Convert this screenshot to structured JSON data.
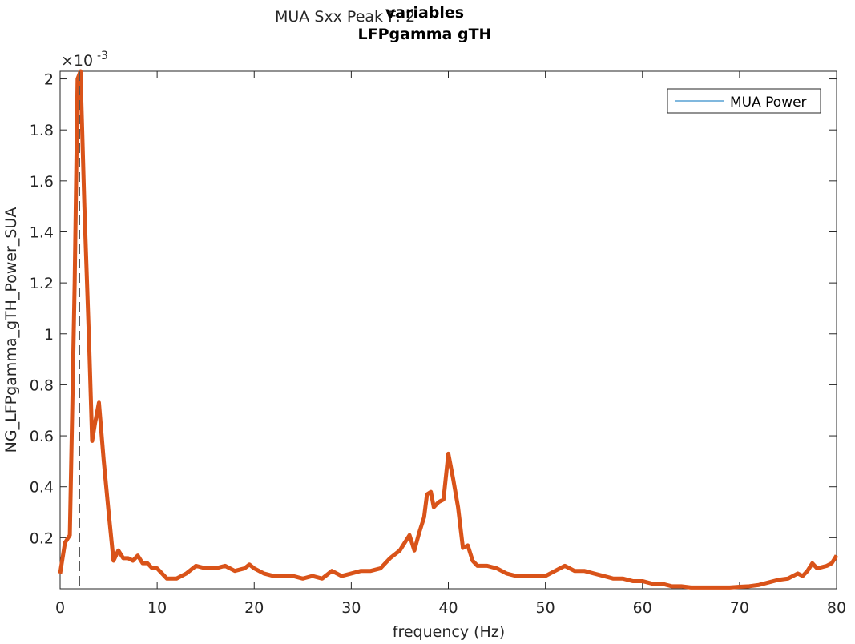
{
  "chart_data": {
    "type": "line",
    "title_lines": [
      "MUA Sxx Peak F: 2",
      "variables",
      "LFPgamma gTH"
    ],
    "xlabel": "frequency (Hz)",
    "ylabel": "NG_LFPgamma_gTH_Power_SUA",
    "y_exponent": {
      "base": "×10",
      "power": "-3"
    },
    "xlim": [
      0,
      80
    ],
    "ylim": [
      0,
      2.03
    ],
    "xticks": [
      0,
      10,
      20,
      30,
      40,
      50,
      60,
      70,
      80
    ],
    "yticks": [
      0.2,
      0.4,
      0.6,
      0.8,
      1,
      1.2,
      1.4,
      1.6,
      1.8,
      2
    ],
    "peak_line_x": 2,
    "legend": "upper right",
    "legend_line_color": "#0072bd",
    "x": [
      0,
      0.5,
      1,
      1.5,
      1.8,
      2.1,
      2.5,
      3,
      3.3,
      3.6,
      4,
      4.5,
      5,
      5.5,
      6,
      6.5,
      7,
      7.5,
      8,
      8.5,
      9,
      9.5,
      10,
      10.5,
      11,
      12,
      13,
      14,
      15,
      16,
      17,
      18,
      19,
      19.5,
      20,
      21,
      22,
      23,
      24,
      25,
      26,
      27,
      28,
      29,
      30,
      31,
      32,
      33,
      34,
      35,
      36,
      36.5,
      37,
      37.5,
      37.8,
      38.2,
      38.5,
      39,
      39.5,
      40,
      40.5,
      41,
      41.5,
      42,
      42.5,
      43,
      44,
      45,
      46,
      47,
      48,
      49,
      50,
      51,
      52,
      53,
      54,
      55,
      56,
      57,
      58,
      59,
      60,
      61,
      62,
      63,
      64,
      65,
      66,
      67,
      68,
      69,
      70,
      71,
      72,
      73,
      74,
      75,
      76,
      76.5,
      77,
      77.5,
      78,
      79,
      79.5,
      80
    ],
    "series": [
      {
        "name": "MUA Power",
        "color": "#d95319",
        "values": [
          0.06,
          0.18,
          0.21,
          1.2,
          2.0,
          2.03,
          1.5,
          0.95,
          0.58,
          0.65,
          0.73,
          0.5,
          0.3,
          0.11,
          0.15,
          0.12,
          0.12,
          0.11,
          0.13,
          0.1,
          0.1,
          0.08,
          0.08,
          0.06,
          0.04,
          0.04,
          0.06,
          0.09,
          0.08,
          0.08,
          0.09,
          0.07,
          0.08,
          0.095,
          0.08,
          0.06,
          0.05,
          0.05,
          0.05,
          0.04,
          0.05,
          0.04,
          0.07,
          0.05,
          0.06,
          0.07,
          0.07,
          0.08,
          0.12,
          0.15,
          0.21,
          0.15,
          0.22,
          0.28,
          0.37,
          0.38,
          0.32,
          0.34,
          0.35,
          0.53,
          0.43,
          0.32,
          0.16,
          0.17,
          0.11,
          0.09,
          0.09,
          0.08,
          0.06,
          0.05,
          0.05,
          0.05,
          0.05,
          0.07,
          0.09,
          0.07,
          0.07,
          0.06,
          0.05,
          0.04,
          0.04,
          0.03,
          0.03,
          0.02,
          0.02,
          0.01,
          0.01,
          0.005,
          0.005,
          0.005,
          0.005,
          0.005,
          0.008,
          0.01,
          0.015,
          0.025,
          0.035,
          0.04,
          0.06,
          0.05,
          0.07,
          0.1,
          0.08,
          0.09,
          0.1,
          0.13
        ]
      }
    ]
  }
}
